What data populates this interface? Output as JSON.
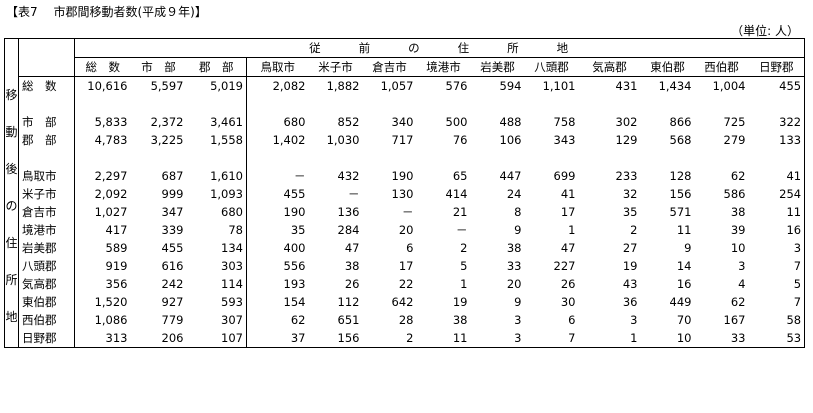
{
  "title": "【表7　 市郡間移動者数(平成９年)】",
  "unit": "（単位: 人）",
  "header_main_chars": [
    "従",
    "前",
    "の",
    "住",
    "所",
    "地"
  ],
  "row_side_chars": [
    "移",
    "動",
    "後",
    "の",
    "住",
    "所",
    "地"
  ],
  "columns": [
    "総　数",
    "市　部",
    "郡　部",
    "鳥取市",
    "米子市",
    "倉吉市",
    "境港市",
    "岩美郡",
    "八頭郡",
    "気高郡",
    "東伯郡",
    "西伯郡",
    "日野郡"
  ],
  "rows": [
    {
      "label": "総　数",
      "values": [
        "10,616",
        "5,597",
        "5,019",
        "2,082",
        "1,882",
        "1,057",
        "576",
        "594",
        "1,101",
        "431",
        "1,434",
        "1,004",
        "455"
      ]
    },
    {
      "label": "",
      "values": [
        "",
        "",
        "",
        "",
        "",
        "",
        "",
        "",
        "",
        "",
        "",
        "",
        ""
      ]
    },
    {
      "label": "市　部",
      "values": [
        "5,833",
        "2,372",
        "3,461",
        "680",
        "852",
        "340",
        "500",
        "488",
        "758",
        "302",
        "866",
        "725",
        "322"
      ]
    },
    {
      "label": "郡　部",
      "values": [
        "4,783",
        "3,225",
        "1,558",
        "1,402",
        "1,030",
        "717",
        "76",
        "106",
        "343",
        "129",
        "568",
        "279",
        "133"
      ]
    },
    {
      "label": "",
      "values": [
        "",
        "",
        "",
        "",
        "",
        "",
        "",
        "",
        "",
        "",
        "",
        "",
        ""
      ]
    },
    {
      "label": "鳥取市",
      "values": [
        "2,297",
        "687",
        "1,610",
        "－",
        "432",
        "190",
        "65",
        "447",
        "699",
        "233",
        "128",
        "62",
        "41"
      ]
    },
    {
      "label": "米子市",
      "values": [
        "2,092",
        "999",
        "1,093",
        "455",
        "－",
        "130",
        "414",
        "24",
        "41",
        "32",
        "156",
        "586",
        "254"
      ]
    },
    {
      "label": "倉吉市",
      "values": [
        "1,027",
        "347",
        "680",
        "190",
        "136",
        "－",
        "21",
        "8",
        "17",
        "35",
        "571",
        "38",
        "11"
      ]
    },
    {
      "label": "境港市",
      "values": [
        "417",
        "339",
        "78",
        "35",
        "284",
        "20",
        "－",
        "9",
        "1",
        "2",
        "11",
        "39",
        "16"
      ]
    },
    {
      "label": "岩美郡",
      "values": [
        "589",
        "455",
        "134",
        "400",
        "47",
        "6",
        "2",
        "38",
        "47",
        "27",
        "9",
        "10",
        "3"
      ]
    },
    {
      "label": "八頭郡",
      "values": [
        "919",
        "616",
        "303",
        "556",
        "38",
        "17",
        "5",
        "33",
        "227",
        "19",
        "14",
        "3",
        "7"
      ]
    },
    {
      "label": "気高郡",
      "values": [
        "356",
        "242",
        "114",
        "193",
        "26",
        "22",
        "1",
        "20",
        "26",
        "43",
        "16",
        "4",
        "5"
      ]
    },
    {
      "label": "東伯郡",
      "values": [
        "1,520",
        "927",
        "593",
        "154",
        "112",
        "642",
        "19",
        "9",
        "30",
        "36",
        "449",
        "62",
        "7"
      ]
    },
    {
      "label": "西伯郡",
      "values": [
        "1,086",
        "779",
        "307",
        "62",
        "651",
        "28",
        "38",
        "3",
        "6",
        "3",
        "70",
        "167",
        "58"
      ]
    },
    {
      "label": "日野郡",
      "values": [
        "313",
        "206",
        "107",
        "37",
        "156",
        "2",
        "11",
        "3",
        "7",
        "1",
        "10",
        "33",
        "53"
      ]
    }
  ]
}
